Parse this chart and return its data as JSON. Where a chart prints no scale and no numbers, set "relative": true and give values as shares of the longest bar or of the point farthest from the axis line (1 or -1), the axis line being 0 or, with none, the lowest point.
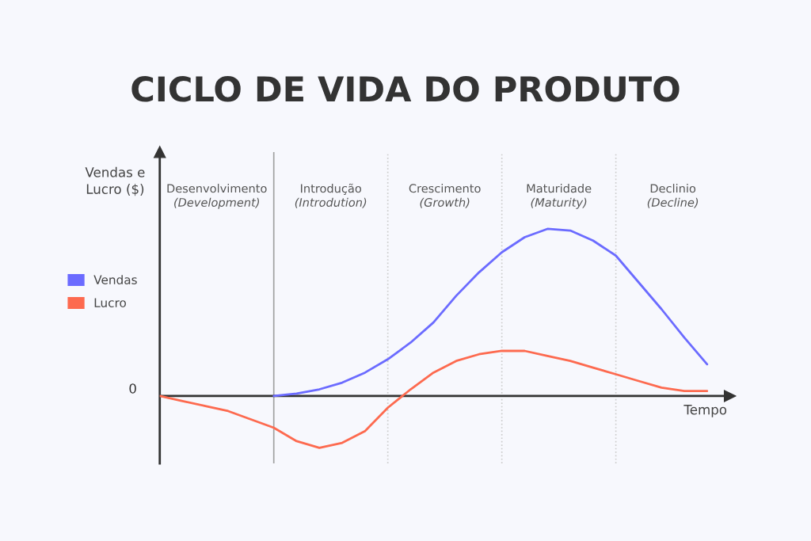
{
  "chart_data": {
    "type": "line",
    "title": "CICLO DE VIDA DO PRODUTO",
    "xlabel": "Tempo",
    "ylabel": "Vendas e\nLucro ($)",
    "relative": true,
    "legend": "left",
    "marker": "none",
    "line_style": "solid",
    "categories": [
      null,
      null,
      null,
      null,
      null,
      null,
      null,
      null,
      null,
      null,
      null,
      null,
      null,
      null,
      null,
      null,
      null,
      null,
      null,
      null,
      null,
      null,
      null,
      null,
      null
    ],
    "series": [
      {
        "name": "Vendas",
        "color": "#6b6bff",
        "values": [
          null,
          null,
          null,
          null,
          null,
          0,
          0.015,
          0.04,
          0.08,
          0.14,
          0.22,
          0.32,
          0.44,
          0.6,
          0.74,
          0.86,
          0.95,
          1,
          0.99,
          0.93,
          0.84,
          0.68,
          0.52,
          0.35,
          0.19
        ]
      },
      {
        "name": "Lucro",
        "color": "#fd6a4f",
        "values": [
          0,
          -0.03,
          -0.06,
          -0.09,
          -0.14,
          -0.19,
          -0.27,
          -0.31,
          -0.28,
          -0.21,
          -0.07,
          0.04,
          0.14,
          0.21,
          0.25,
          0.27,
          0.27,
          0.24,
          0.21,
          0.17,
          0.13,
          0.09,
          0.05,
          0.03,
          0.03
        ]
      }
    ],
    "annotations": [
      "Desenvolvimento\n(Development)",
      "Introdução\n(Introdution)",
      "Crescimento\n(Growth)",
      "Maturidade\n(Maturity)",
      "Declinio\n(Decline)",
      "0"
    ],
    "grid": "x"
  }
}
